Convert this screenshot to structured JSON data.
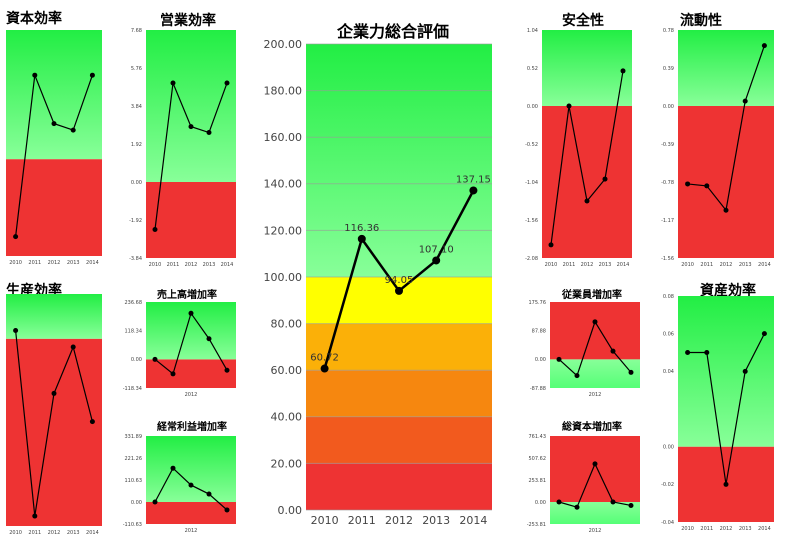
{
  "charts": [
    {
      "id": "capital_efficiency",
      "title": "資本効率",
      "type": "line",
      "bands": [
        {
          "from": 0,
          "to": 6,
          "color": "#ee3333"
        },
        {
          "from": 6,
          "to": 14,
          "color": "greenfade"
        }
      ],
      "x": [
        "2010",
        "2011",
        "2012",
        "2013",
        "2014"
      ],
      "values": [
        1.2,
        11.2,
        8.2,
        7.8,
        11.2
      ],
      "ylim": [
        0,
        14
      ],
      "ytick_labels": [],
      "show_values": false
    },
    {
      "id": "operating_efficiency",
      "title": "営業効率",
      "type": "line",
      "bands": [
        {
          "from": -3.84,
          "to": 0,
          "color": "#ee3333"
        },
        {
          "from": 0,
          "to": 7.68,
          "color": "greenfade"
        }
      ],
      "x": [
        "2010",
        "2011",
        "2012",
        "2013",
        "2014"
      ],
      "values": [
        -2.4,
        5.0,
        2.8,
        2.5,
        5.0
      ],
      "ylim": [
        -3.84,
        7.68
      ],
      "ytick_labels": [
        "7.68",
        "5.76",
        "3.84",
        "1.92",
        "0.00",
        "-1.92",
        "-3.84"
      ],
      "show_values": false
    },
    {
      "id": "overall_evaluation",
      "title": "企業力総合評価",
      "type": "line",
      "bands": [
        {
          "from": 0,
          "to": 20,
          "color": "#ee3333"
        },
        {
          "from": 20,
          "to": 40,
          "color": "#f25a1e"
        },
        {
          "from": 40,
          "to": 60,
          "color": "#f6870f"
        },
        {
          "from": 60,
          "to": 80,
          "color": "#fbb008"
        },
        {
          "from": 80,
          "to": 100,
          "color": "#ffff00"
        },
        {
          "from": 100,
          "to": 200,
          "color": "greenfade"
        }
      ],
      "x": [
        "2010",
        "2011",
        "2012",
        "2013",
        "2014"
      ],
      "values": [
        60.72,
        116.36,
        94.05,
        107.1,
        137.15
      ],
      "data_labels": [
        "60.72",
        "116.36",
        "94.05",
        "107.10",
        "137.15"
      ],
      "ylim": [
        0,
        200
      ],
      "ytick_labels": [
        "200.00",
        "180.00",
        "160.00",
        "140.00",
        "120.00",
        "100.00",
        "80.00",
        "60.00",
        "40.00",
        "20.00",
        "0.00"
      ],
      "show_values": true
    },
    {
      "id": "safety",
      "title": "安全性",
      "type": "line",
      "bands": [
        {
          "from": -2.08,
          "to": 0,
          "color": "#ee3333"
        },
        {
          "from": 0,
          "to": 1.04,
          "color": "greenfade"
        }
      ],
      "x": [
        "2010",
        "2011",
        "2012",
        "2013",
        "2014"
      ],
      "values": [
        -1.9,
        0.0,
        -1.3,
        -1.0,
        0.48
      ],
      "ylim": [
        -2.08,
        1.04
      ],
      "ytick_labels": [
        "1.04",
        "0.52",
        "0.00",
        "-0.52",
        "-1.04",
        "-1.56",
        "-2.08"
      ],
      "show_values": false
    },
    {
      "id": "liquidity",
      "title": "流動性",
      "type": "line",
      "bands": [
        {
          "from": -1.56,
          "to": 0,
          "color": "#ee3333"
        },
        {
          "from": 0,
          "to": 0.78,
          "color": "greenfade"
        }
      ],
      "x": [
        "2010",
        "2011",
        "2012",
        "2013",
        "2014"
      ],
      "values": [
        -0.8,
        -0.82,
        -1.07,
        0.05,
        0.62
      ],
      "ylim": [
        -1.56,
        0.78
      ],
      "ytick_labels": [
        "0.78",
        "0.39",
        "0.00",
        "-0.39",
        "-0.78",
        "-1.17",
        "-1.56"
      ],
      "show_values": false
    },
    {
      "id": "productivity",
      "title": "生産効率",
      "type": "line",
      "bands": [
        {
          "from": 0,
          "to": 11.3,
          "color": "#ee3333"
        },
        {
          "from": 11.3,
          "to": 14,
          "color": "greenfade"
        }
      ],
      "x": [
        "2010",
        "2011",
        "2012",
        "2013",
        "2014"
      ],
      "values": [
        11.8,
        0.6,
        8.0,
        10.8,
        6.3
      ],
      "ylim": [
        0,
        14
      ],
      "ytick_labels": [],
      "show_values": false
    },
    {
      "id": "sales_growth",
      "title": "売上高増加率",
      "type": "line",
      "bands": [
        {
          "from": -118.34,
          "to": 0,
          "color": "#ee3333"
        },
        {
          "from": 0,
          "to": 236.68,
          "color": "greenfade"
        }
      ],
      "x": [
        "",
        "",
        "2012",
        "",
        ""
      ],
      "values": [
        0,
        -60,
        190,
        85,
        -45
      ],
      "ylim": [
        -118.34,
        236.68
      ],
      "ytick_labels": [
        "236.68",
        "118.34",
        "0.00",
        "-118.34"
      ],
      "show_values": false
    },
    {
      "id": "ordinary_profit_growth",
      "title": "経常利益増加率",
      "type": "line",
      "bands": [
        {
          "from": -110.63,
          "to": 0,
          "color": "#ee3333"
        },
        {
          "from": 0,
          "to": 331.89,
          "color": "greenfade"
        }
      ],
      "x": [
        "",
        "",
        "2012",
        "",
        ""
      ],
      "values": [
        0,
        170,
        85,
        40,
        -40
      ],
      "ylim": [
        -110.63,
        331.89
      ],
      "ytick_labels": [
        "331.89",
        "221.26",
        "110.63",
        "0.00",
        "-110.63"
      ],
      "show_values": false
    },
    {
      "id": "employee_growth",
      "title": "従業員増加率",
      "type": "line",
      "bands": [
        {
          "from": -87.88,
          "to": 0,
          "color": "greenfade_rev"
        },
        {
          "from": 0,
          "to": 175.76,
          "color": "#ee3333"
        }
      ],
      "x": [
        "",
        "",
        "2012",
        "",
        ""
      ],
      "values": [
        0,
        -50,
        115,
        25,
        -40
      ],
      "ylim": [
        -87.88,
        175.76
      ],
      "ytick_labels": [
        "175.76",
        "87.88",
        "0.00",
        "-87.88"
      ],
      "show_values": false
    },
    {
      "id": "total_capital_growth",
      "title": "総資本増加率",
      "type": "line",
      "bands": [
        {
          "from": -253.81,
          "to": 0,
          "color": "greenfade_rev"
        },
        {
          "from": 0,
          "to": 761.43,
          "color": "#ee3333"
        }
      ],
      "x": [
        "",
        "",
        "2012",
        "",
        ""
      ],
      "values": [
        0,
        -60,
        440,
        0,
        -40
      ],
      "ylim": [
        -253.81,
        761.43
      ],
      "ytick_labels": [
        "761.43",
        "507.62",
        "253.81",
        "0.00",
        "-253.81"
      ],
      "show_values": false
    },
    {
      "id": "asset_efficiency",
      "title": "資産効率",
      "type": "line",
      "bands": [
        {
          "from": -0.04,
          "to": 0,
          "color": "#ee3333"
        },
        {
          "from": 0,
          "to": 0.08,
          "color": "greenfade"
        }
      ],
      "x": [
        "2010",
        "2011",
        "2012",
        "2013",
        "2014"
      ],
      "values": [
        0.05,
        0.05,
        -0.02,
        0.04,
        0.06
      ],
      "ylim": [
        -0.04,
        0.08
      ],
      "ytick_labels": [
        "0.08",
        "0.06",
        "0.04",
        "0.00",
        "-0.02",
        "-0.04"
      ],
      "show_values": false
    }
  ]
}
